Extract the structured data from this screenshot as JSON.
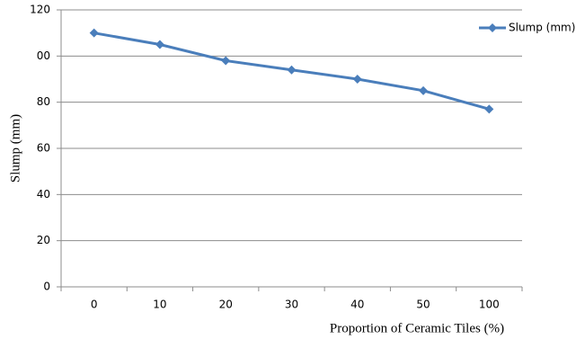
{
  "chart_data": {
    "type": "line",
    "x_label": "Proportion of Ceramic Tiles (%)",
    "y_label": "Slump (mm)",
    "categories": [
      "0",
      "10",
      "20",
      "30",
      "40",
      "50",
      "100"
    ],
    "series": [
      {
        "name": "Slump (mm)",
        "color": "#4a7ebb",
        "values": [
          110,
          105,
          98,
          94,
          90,
          85,
          77
        ]
      }
    ],
    "ylim": [
      0,
      120
    ],
    "yticks": [
      0,
      20,
      40,
      60,
      80,
      {
        "value": 100,
        "label": "00"
      },
      120
    ],
    "grid": true,
    "legend": "top-right"
  }
}
